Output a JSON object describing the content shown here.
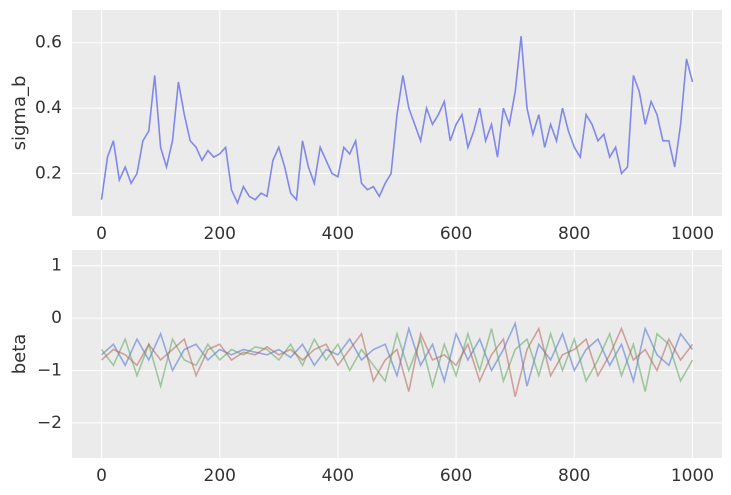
{
  "chart_data": [
    {
      "type": "line",
      "y_label": "sigma_b",
      "x": [
        0,
        10,
        20,
        30,
        40,
        50,
        60,
        70,
        80,
        90,
        100,
        110,
        120,
        130,
        140,
        150,
        160,
        170,
        180,
        190,
        200,
        210,
        220,
        230,
        240,
        250,
        260,
        270,
        280,
        290,
        300,
        310,
        320,
        330,
        340,
        350,
        360,
        370,
        380,
        390,
        400,
        410,
        420,
        430,
        440,
        450,
        460,
        470,
        480,
        490,
        500,
        510,
        520,
        530,
        540,
        550,
        560,
        570,
        580,
        590,
        600,
        610,
        620,
        630,
        640,
        650,
        660,
        670,
        680,
        690,
        700,
        710,
        720,
        730,
        740,
        750,
        760,
        770,
        780,
        790,
        800,
        810,
        820,
        830,
        840,
        850,
        860,
        870,
        880,
        890,
        900,
        910,
        920,
        930,
        940,
        950,
        960,
        970,
        980,
        990,
        1000
      ],
      "series": [
        {
          "color": "#8088ea",
          "values": [
            0.12,
            0.25,
            0.3,
            0.18,
            0.22,
            0.17,
            0.2,
            0.3,
            0.33,
            0.5,
            0.28,
            0.22,
            0.3,
            0.48,
            0.38,
            0.3,
            0.28,
            0.24,
            0.27,
            0.25,
            0.26,
            0.28,
            0.15,
            0.11,
            0.16,
            0.13,
            0.12,
            0.14,
            0.13,
            0.24,
            0.28,
            0.22,
            0.14,
            0.12,
            0.3,
            0.22,
            0.17,
            0.28,
            0.24,
            0.2,
            0.19,
            0.28,
            0.26,
            0.3,
            0.17,
            0.15,
            0.16,
            0.13,
            0.17,
            0.2,
            0.38,
            0.5,
            0.4,
            0.35,
            0.3,
            0.4,
            0.35,
            0.38,
            0.42,
            0.3,
            0.35,
            0.38,
            0.28,
            0.33,
            0.4,
            0.3,
            0.35,
            0.25,
            0.4,
            0.35,
            0.45,
            0.62,
            0.4,
            0.32,
            0.38,
            0.28,
            0.35,
            0.3,
            0.4,
            0.33,
            0.28,
            0.25,
            0.38,
            0.35,
            0.3,
            0.32,
            0.25,
            0.28,
            0.2,
            0.22,
            0.5,
            0.45,
            0.35,
            0.42,
            0.38,
            0.3,
            0.3,
            0.22,
            0.35,
            0.55,
            0.48
          ]
        }
      ],
      "xlim": [
        -50,
        1050
      ],
      "xticks": [
        0,
        200,
        400,
        600,
        800,
        1000
      ],
      "ylim": [
        0.07,
        0.7
      ],
      "yticks": [
        0.2,
        0.4,
        0.6
      ],
      "grid": true
    },
    {
      "type": "line",
      "y_label": "beta",
      "x": [
        0,
        20,
        40,
        60,
        80,
        100,
        120,
        140,
        160,
        180,
        200,
        220,
        240,
        260,
        280,
        300,
        320,
        340,
        360,
        380,
        400,
        420,
        440,
        460,
        480,
        500,
        520,
        540,
        560,
        580,
        600,
        620,
        640,
        660,
        680,
        700,
        720,
        740,
        760,
        780,
        800,
        820,
        840,
        860,
        880,
        900,
        920,
        940,
        960,
        980,
        1000
      ],
      "series": [
        {
          "color": "#4c6fd6",
          "values": [
            -0.7,
            -0.5,
            -0.9,
            -0.4,
            -0.8,
            -0.3,
            -1.0,
            -0.6,
            -0.5,
            -0.8,
            -0.6,
            -0.7,
            -0.6,
            -0.65,
            -0.7,
            -0.6,
            -0.75,
            -0.5,
            -0.9,
            -0.6,
            -0.7,
            -0.4,
            -0.8,
            -0.6,
            -0.5,
            -1.1,
            -0.2,
            -0.9,
            -0.5,
            -1.2,
            -0.3,
            -0.8,
            -0.4,
            -1.0,
            -0.6,
            -0.1,
            -1.3,
            -0.5,
            -0.8,
            -0.3,
            -1.0,
            -0.6,
            -0.4,
            -0.9,
            -0.5,
            -1.2,
            -0.2,
            -0.7,
            -0.9,
            -0.3,
            -0.6
          ]
        },
        {
          "color": "#5ea85e",
          "values": [
            -0.6,
            -0.9,
            -0.4,
            -1.1,
            -0.5,
            -1.3,
            -0.4,
            -0.8,
            -0.9,
            -0.5,
            -0.8,
            -0.6,
            -0.7,
            -0.55,
            -0.6,
            -0.8,
            -0.5,
            -0.9,
            -0.4,
            -0.8,
            -0.5,
            -1.0,
            -0.6,
            -0.9,
            -1.2,
            -0.3,
            -1.0,
            -0.4,
            -1.3,
            -0.5,
            -1.1,
            -0.3,
            -1.0,
            -0.2,
            -1.2,
            -0.6,
            -0.4,
            -1.1,
            -0.3,
            -1.0,
            -0.4,
            -1.2,
            -0.8,
            -0.3,
            -1.1,
            -0.5,
            -1.4,
            -0.3,
            -0.5,
            -1.2,
            -0.8
          ]
        },
        {
          "color": "#b5645a",
          "values": [
            -0.8,
            -0.6,
            -0.7,
            -0.9,
            -0.5,
            -0.8,
            -0.6,
            -0.4,
            -1.1,
            -0.6,
            -0.5,
            -0.8,
            -0.65,
            -0.7,
            -0.55,
            -0.7,
            -0.6,
            -0.8,
            -0.6,
            -0.5,
            -0.9,
            -0.6,
            -0.3,
            -1.2,
            -0.8,
            -0.6,
            -1.4,
            -0.3,
            -0.8,
            -0.7,
            -0.9,
            -0.5,
            -1.2,
            -0.7,
            -0.4,
            -1.5,
            -0.6,
            -0.2,
            -1.1,
            -0.7,
            -0.6,
            -0.4,
            -1.1,
            -0.7,
            -0.2,
            -0.8,
            -0.6,
            -1.0,
            -0.4,
            -0.8,
            -0.5
          ]
        }
      ],
      "xlim": [
        -50,
        1050
      ],
      "xticks": [
        0,
        200,
        400,
        600,
        800,
        1000
      ],
      "ylim": [
        -2.67,
        1.3
      ],
      "yticks": [
        {
          "value": -2,
          "label": "−2"
        },
        {
          "value": -1,
          "label": "−1"
        },
        0,
        1
      ],
      "grid": true
    }
  ]
}
